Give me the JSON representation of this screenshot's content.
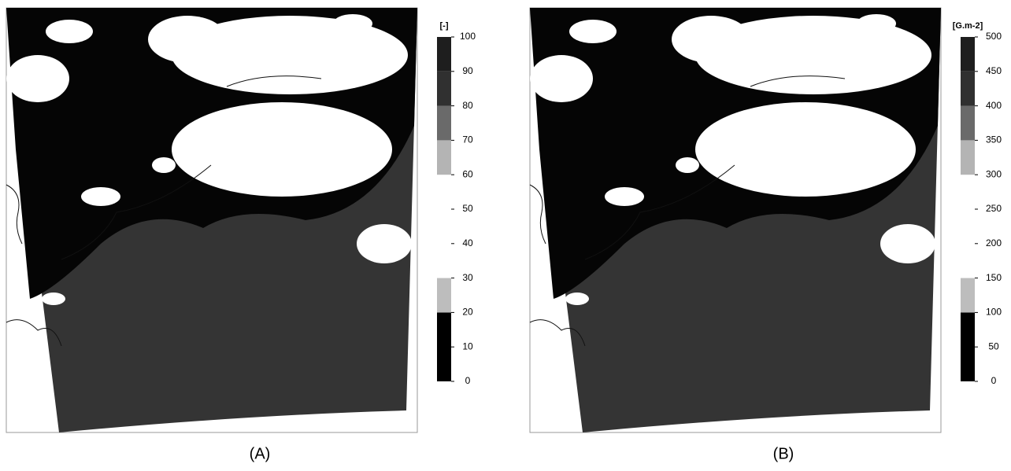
{
  "panels": [
    {
      "caption": "(A)",
      "colorbar": {
        "unit": "[-]",
        "lim": [
          0,
          100
        ],
        "ticks": [
          0,
          10,
          20,
          30,
          40,
          50,
          60,
          70,
          80,
          90,
          100
        ],
        "bands": [
          {
            "from": 0,
            "to": 20,
            "color": "#000000"
          },
          {
            "from": 20,
            "to": 30,
            "color": "#bdbdbd"
          },
          {
            "from": 60,
            "to": 70,
            "color": "#b4b4b4"
          },
          {
            "from": 70,
            "to": 80,
            "color": "#6a6a6a"
          },
          {
            "from": 80,
            "to": 90,
            "color": "#303030"
          },
          {
            "from": 90,
            "to": 100,
            "color": "#1e1e1e"
          }
        ]
      }
    },
    {
      "caption": "(B)",
      "colorbar": {
        "unit": "[G.m-2]",
        "lim": [
          0,
          500
        ],
        "ticks": [
          0,
          50,
          100,
          150,
          200,
          250,
          300,
          350,
          400,
          450,
          500
        ],
        "bands": [
          {
            "from": 0,
            "to": 100,
            "color": "#000000"
          },
          {
            "from": 100,
            "to": 150,
            "color": "#bdbdbd"
          },
          {
            "from": 300,
            "to": 350,
            "color": "#b4b4b4"
          },
          {
            "from": 350,
            "to": 400,
            "color": "#6a6a6a"
          },
          {
            "from": 400,
            "to": 450,
            "color": "#303030"
          },
          {
            "from": 450,
            "to": 500,
            "color": "#1e1e1e"
          }
        ]
      }
    }
  ]
}
